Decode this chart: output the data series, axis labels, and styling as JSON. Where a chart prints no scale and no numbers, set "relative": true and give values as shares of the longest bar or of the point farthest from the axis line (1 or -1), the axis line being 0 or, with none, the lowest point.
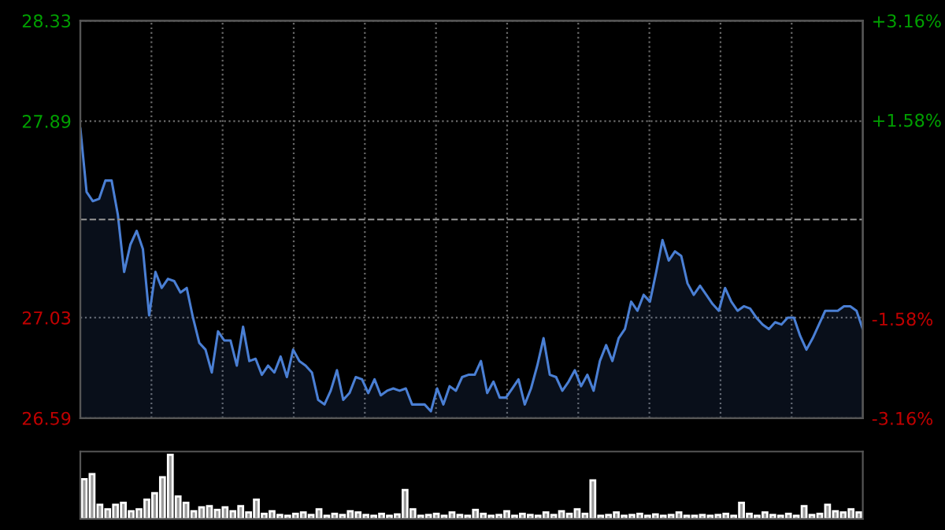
{
  "chart_data": [
    {
      "type": "area",
      "categories": [
        null,
        null,
        null,
        null,
        null,
        null,
        null,
        null,
        null,
        null,
        null,
        null,
        null,
        null,
        null,
        null,
        null,
        null,
        null,
        null,
        null,
        null,
        null,
        null,
        null,
        null,
        null,
        null,
        null,
        null,
        null,
        null,
        null,
        null,
        null,
        null,
        null,
        null,
        null,
        null,
        null,
        null,
        null,
        null,
        null,
        null,
        null,
        null,
        null,
        null,
        null,
        null,
        null,
        null,
        null,
        null,
        null,
        null,
        null,
        null,
        null,
        null,
        null,
        null,
        null,
        null,
        null,
        null,
        null,
        null,
        null,
        null,
        null,
        null,
        null,
        null,
        null,
        null,
        null,
        null,
        null,
        null,
        null,
        null,
        null,
        null,
        null,
        null,
        null,
        null,
        null,
        null,
        null,
        null,
        null,
        null,
        null,
        null,
        null,
        null,
        null,
        null,
        null,
        null,
        null,
        null,
        null,
        null,
        null,
        null,
        null,
        null,
        null,
        null,
        null,
        null,
        null,
        null,
        null,
        null,
        null,
        null,
        null,
        null,
        null,
        null
      ],
      "series": [
        {
          "color": "#4a7fd4",
          "values": [
            27.86,
            27.58,
            27.54,
            27.55,
            27.63,
            27.63,
            27.48,
            27.23,
            27.35,
            27.41,
            27.33,
            27.04,
            27.23,
            27.16,
            27.2,
            27.19,
            27.14,
            27.16,
            27.03,
            26.92,
            26.89,
            26.79,
            26.97,
            26.93,
            26.93,
            26.82,
            26.99,
            26.84,
            26.85,
            26.78,
            26.82,
            26.79,
            26.86,
            26.77,
            26.89,
            26.84,
            26.82,
            26.79,
            26.67,
            26.65,
            26.71,
            26.8,
            26.67,
            26.7,
            26.77,
            26.76,
            26.7,
            26.76,
            26.69,
            26.71,
            26.72,
            26.71,
            26.72,
            26.65,
            26.65,
            26.65,
            26.62,
            26.72,
            26.65,
            26.73,
            26.71,
            26.77,
            26.78,
            26.78,
            26.84,
            26.7,
            26.75,
            26.68,
            26.68,
            26.72,
            26.76,
            26.65,
            26.72,
            26.82,
            26.94,
            26.78,
            26.77,
            26.71,
            26.75,
            26.8,
            26.73,
            26.78,
            26.71,
            26.84,
            26.91,
            26.84,
            26.94,
            26.98,
            27.1,
            27.06,
            27.13,
            27.1,
            27.23,
            27.37,
            27.28,
            27.32,
            27.3,
            27.18,
            27.13,
            27.17,
            27.13,
            27.09,
            27.06,
            27.16,
            27.1,
            27.06,
            27.08,
            27.07,
            27.03,
            27.0,
            26.98,
            27.01,
            27.0,
            27.03,
            27.03,
            26.95,
            26.89,
            26.94,
            27.0,
            27.06,
            27.06,
            27.06,
            27.08,
            27.08,
            27.06,
            26.98
          ]
        }
      ],
      "ylim": [
        26.59,
        28.33
      ],
      "yticks": [
        28.33,
        27.89,
        27.03,
        26.59
      ],
      "y2lim": [
        -3.16,
        3.16
      ],
      "y2ticks": [
        {
          "value": 3.16,
          "label": "+3.16%"
        },
        {
          "value": 1.58,
          "label": "+1.58%"
        },
        {
          "value": -1.58,
          "label": "-1.58%"
        },
        {
          "value": -3.16,
          "label": "-3.16%"
        }
      ],
      "ref_lines": [
        {
          "axis": "y",
          "value": 27.46,
          "line_style": "dashed"
        }
      ],
      "grid": true,
      "line_style": "solid"
    },
    {
      "type": "bar",
      "relative": true,
      "color": "#9a9a9a",
      "categories": [
        null,
        null,
        null,
        null,
        null,
        null,
        null,
        null,
        null,
        null,
        null,
        null,
        null,
        null,
        null,
        null,
        null,
        null,
        null,
        null,
        null,
        null,
        null,
        null,
        null,
        null,
        null,
        null,
        null,
        null,
        null,
        null,
        null,
        null,
        null,
        null,
        null,
        null,
        null,
        null,
        null,
        null,
        null,
        null,
        null,
        null,
        null,
        null,
        null,
        null,
        null,
        null,
        null,
        null,
        null,
        null,
        null,
        null,
        null,
        null,
        null,
        null,
        null,
        null,
        null,
        null,
        null,
        null,
        null,
        null,
        null,
        null,
        null,
        null,
        null,
        null,
        null,
        null,
        null,
        null,
        null,
        null,
        null,
        null,
        null,
        null,
        null,
        null,
        null,
        null,
        null,
        null,
        null,
        null,
        null,
        null,
        null,
        null,
        null,
        null
      ],
      "values": [
        0.62,
        0.7,
        0.22,
        0.15,
        0.22,
        0.25,
        0.12,
        0.15,
        0.3,
        0.4,
        0.65,
        1.0,
        0.35,
        0.25,
        0.12,
        0.18,
        0.2,
        0.14,
        0.18,
        0.12,
        0.2,
        0.1,
        0.3,
        0.08,
        0.12,
        0.06,
        0.05,
        0.08,
        0.1,
        0.06,
        0.15,
        0.05,
        0.08,
        0.06,
        0.12,
        0.1,
        0.06,
        0.05,
        0.08,
        0.05,
        0.07,
        0.45,
        0.15,
        0.05,
        0.06,
        0.08,
        0.05,
        0.1,
        0.06,
        0.05,
        0.14,
        0.08,
        0.05,
        0.06,
        0.12,
        0.05,
        0.08,
        0.06,
        0.05,
        0.1,
        0.06,
        0.12,
        0.08,
        0.15,
        0.08,
        0.6,
        0.05,
        0.06,
        0.1,
        0.05,
        0.06,
        0.08,
        0.05,
        0.07,
        0.05,
        0.06,
        0.1,
        0.05,
        0.05,
        0.06,
        0.05,
        0.06,
        0.08,
        0.05,
        0.25,
        0.08,
        0.05,
        0.1,
        0.06,
        0.05,
        0.08,
        0.05,
        0.2,
        0.06,
        0.08,
        0.22,
        0.12,
        0.1,
        0.15,
        0.1
      ]
    }
  ]
}
